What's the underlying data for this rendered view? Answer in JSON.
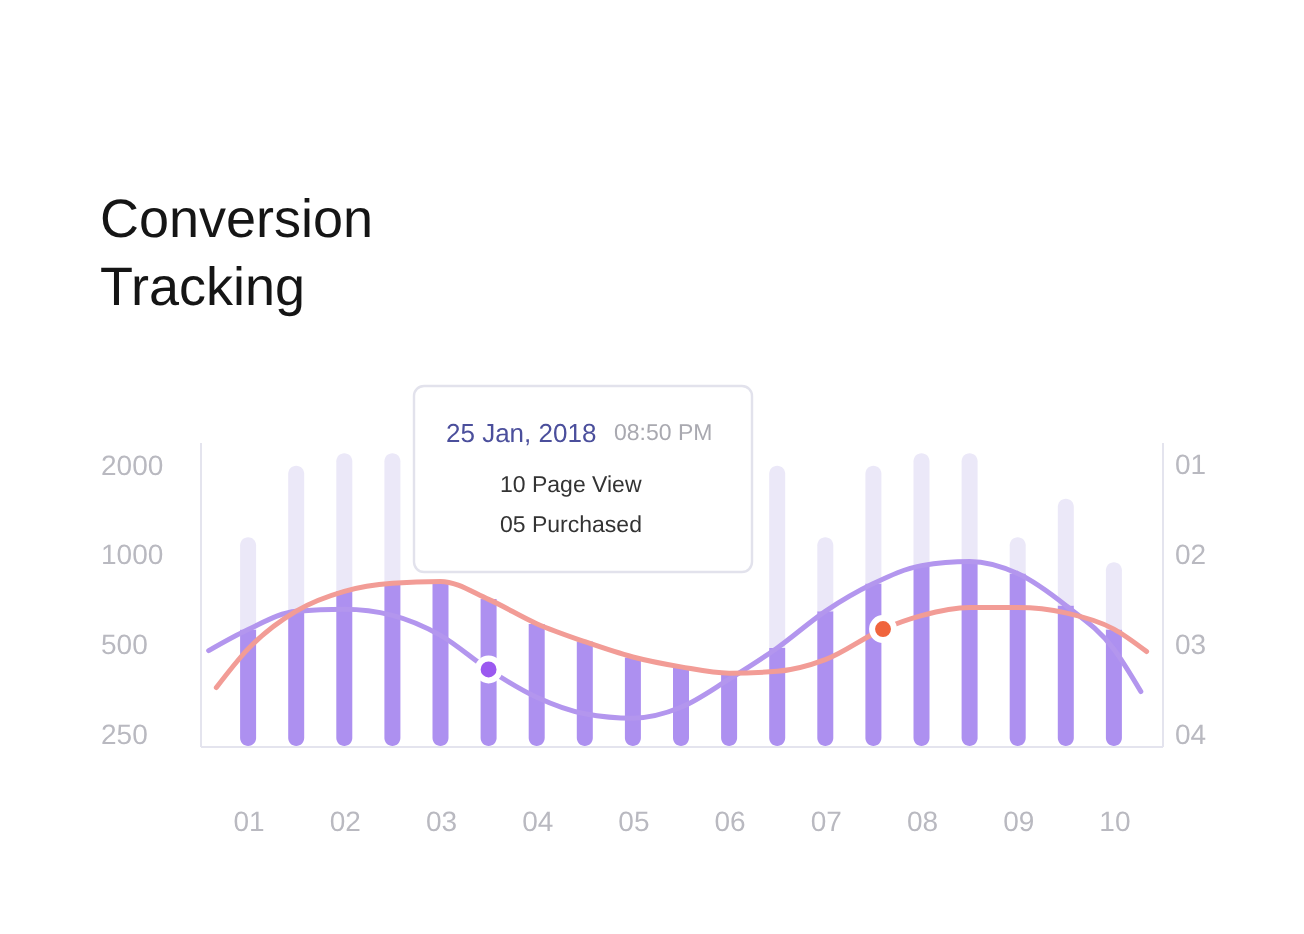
{
  "chart_data": {
    "type": "bar",
    "title": "Conversion Tracking",
    "stacked": true,
    "x": [
      1,
      1.5,
      2,
      2.5,
      3,
      3.5,
      4,
      4.5,
      5,
      5.5,
      6,
      6.5,
      7,
      7.5,
      8,
      8.5,
      9,
      9.5,
      10
    ],
    "xlim": [
      0.5,
      10.5
    ],
    "xticks": [
      {
        "value": 1,
        "label": "01"
      },
      {
        "value": 2,
        "label": "02"
      },
      {
        "value": 3,
        "label": "03"
      },
      {
        "value": 4,
        "label": "04"
      },
      {
        "value": 5,
        "label": "05"
      },
      {
        "value": 6,
        "label": "06"
      },
      {
        "value": 7,
        "label": "07"
      },
      {
        "value": 8,
        "label": "08"
      },
      {
        "value": 9,
        "label": "09"
      },
      {
        "value": 10,
        "label": "10"
      }
    ],
    "log": true,
    "ylim": [
      230,
      2400
    ],
    "yticks": [
      250,
      500,
      1000,
      2000
    ],
    "y2lim": [
      4.12,
      0.74
    ],
    "y2ticks": [
      {
        "value": 1,
        "label": "01"
      },
      {
        "value": 2,
        "label": "02"
      },
      {
        "value": 3,
        "label": "03"
      },
      {
        "value": 4,
        "label": "04"
      }
    ],
    "series": [
      {
        "color": "#ad90f0",
        "values": [
          565,
          650,
          760,
          805,
          820,
          715,
          590,
          515,
          455,
          422,
          405,
          490,
          650,
          805,
          925,
          955,
          870,
          680,
          565
        ]
      },
      {
        "color": "#ebe8f8",
        "values": [
          585,
          1350,
          1440,
          1395,
          null,
          null,
          null,
          null,
          null,
          null,
          null,
          1510,
          500,
          1195,
          1275,
          1245,
          280,
          870,
          385
        ]
      },
      {
        "type": "line",
        "color": "#b396ee",
        "x": [
          0.59,
          1,
          1.5,
          2,
          2.5,
          3,
          3.5,
          4,
          4.5,
          5,
          5.5,
          6,
          6.5,
          7,
          7.5,
          8,
          8.5,
          9,
          9.5,
          10,
          10.28
        ],
        "values": [
          480,
          565,
          650,
          660,
          630,
          540,
          415,
          335,
          295,
          285,
          310,
          385,
          490,
          650,
          805,
          925,
          955,
          870,
          680,
          485,
          350
        ]
      },
      {
        "type": "line",
        "axis": "y2",
        "color": "#f29c96",
        "x": [
          0.67,
          1,
          1.5,
          2,
          2.5,
          3,
          3.5,
          4,
          4.5,
          5,
          5.5,
          6,
          6.5,
          7,
          7.6,
          8,
          8.5,
          9,
          9.5,
          10,
          10.34
        ],
        "values": [
          3.47,
          3.04,
          2.62,
          2.4,
          2.31,
          2.29,
          2.49,
          2.76,
          2.96,
          3.13,
          3.24,
          3.31,
          3.29,
          3.16,
          2.82,
          2.67,
          2.58,
          2.58,
          2.64,
          2.82,
          3.07
        ]
      },
      {
        "type": "scatter",
        "marker": "circle",
        "color": "#9b59f0",
        "x": [
          3.5
        ],
        "values": [
          415
        ]
      },
      {
        "type": "scatter",
        "marker": "circle",
        "axis": "y2",
        "color": "#f0643c",
        "x": [
          7.6
        ],
        "values": [
          2.82
        ]
      }
    ],
    "annotations": [
      "25 Jan, 2018",
      "08:50 PM",
      "10 Page View",
      "05 Purchased"
    ]
  }
}
